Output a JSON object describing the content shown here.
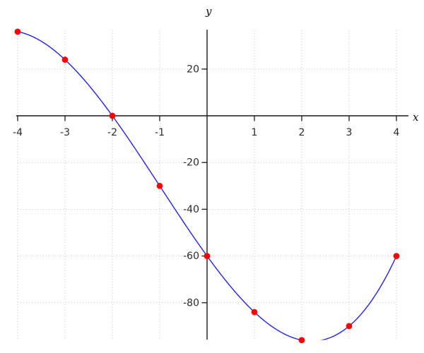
{
  "chart_data": {
    "type": "line",
    "title": "",
    "xlabel": "x",
    "ylabel": "y",
    "x_ticks": [
      -4,
      -3,
      -2,
      -1,
      1,
      2,
      3,
      4
    ],
    "y_ticks": [
      20,
      -20,
      -40,
      -60,
      -80
    ],
    "xlim": [
      -4,
      4
    ],
    "ylim": [
      -96,
      37
    ],
    "grid": "dotted",
    "legend": "none",
    "axis_color": "#1a1a1a",
    "grid_color": "#c3c3c3",
    "tick_label_color": "#2b2b2b",
    "curve": {
      "name": "cubic-curve",
      "polynomial_coefficients": [
        1,
        3,
        -28,
        -60
      ],
      "domain": [
        -4,
        4
      ],
      "color": "#2222ee",
      "clipped_below": -96
    },
    "points": {
      "color": "#ff0000",
      "xy": [
        [
          -4,
          36
        ],
        [
          -3,
          24
        ],
        [
          -2,
          0
        ],
        [
          -1,
          -30
        ],
        [
          0,
          -60
        ],
        [
          1,
          -84
        ],
        [
          2,
          -96
        ],
        [
          3,
          -90
        ],
        [
          4,
          -60
        ]
      ]
    }
  }
}
